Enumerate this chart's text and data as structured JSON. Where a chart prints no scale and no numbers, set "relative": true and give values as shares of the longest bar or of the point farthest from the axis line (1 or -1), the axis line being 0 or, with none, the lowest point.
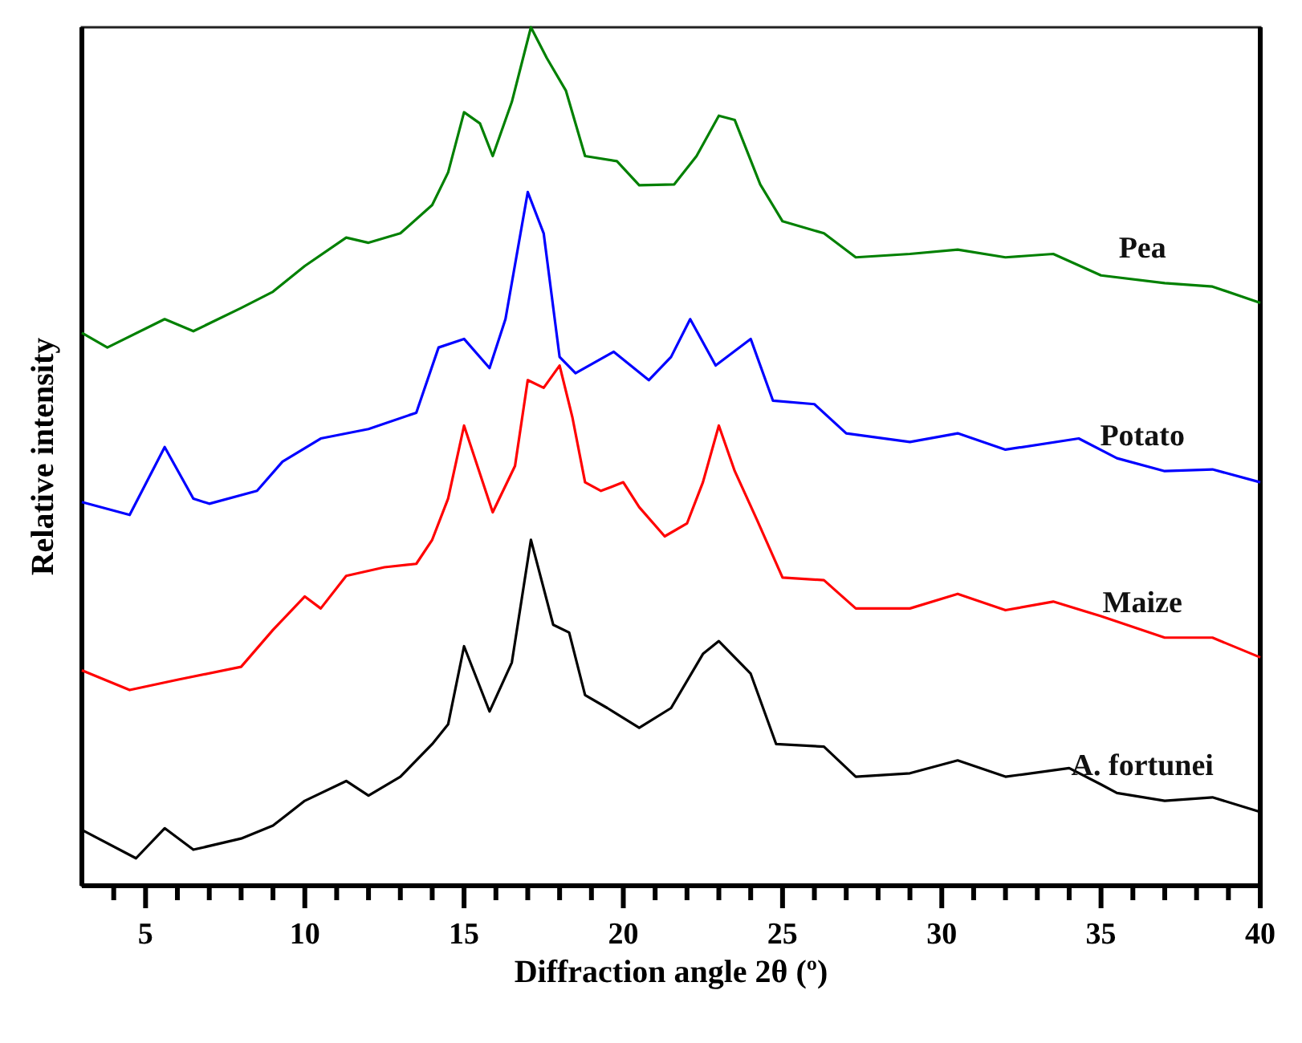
{
  "chart_data": {
    "type": "line",
    "relative": true,
    "xlabel": "Diffraction angle 2θ (º)",
    "ylabel": "Relative intensity",
    "xlim": [
      3,
      40
    ],
    "xticks": [
      {
        "value": 4,
        "label": null
      },
      5,
      {
        "value": 6,
        "label": null
      },
      {
        "value": 7,
        "label": null
      },
      {
        "value": 8,
        "label": null
      },
      {
        "value": 9,
        "label": null
      },
      10,
      {
        "value": 11,
        "label": null
      },
      {
        "value": 12,
        "label": null
      },
      {
        "value": 13,
        "label": null
      },
      {
        "value": 14,
        "label": null
      },
      15,
      {
        "value": 16,
        "label": null
      },
      {
        "value": 17,
        "label": null
      },
      {
        "value": 18,
        "label": null
      },
      {
        "value": 19,
        "label": null
      },
      20,
      {
        "value": 21,
        "label": null
      },
      {
        "value": 22,
        "label": null
      },
      {
        "value": 23,
        "label": null
      },
      {
        "value": 24,
        "label": null
      },
      25,
      {
        "value": 26,
        "label": null
      },
      {
        "value": 27,
        "label": null
      },
      {
        "value": 28,
        "label": null
      },
      {
        "value": 29,
        "label": null
      },
      30,
      {
        "value": 31,
        "label": null
      },
      {
        "value": 32,
        "label": null
      },
      {
        "value": 33,
        "label": null
      },
      {
        "value": 34,
        "label": null
      },
      35,
      {
        "value": 36,
        "label": null
      },
      {
        "value": 37,
        "label": null
      },
      {
        "value": 38,
        "label": null
      },
      {
        "value": 39,
        "label": null
      },
      40
    ],
    "legend": false,
    "series": [
      {
        "name": "A. fortunei",
        "color": "#000000",
        "x": [
          3,
          4.7,
          5.6,
          6.5,
          8,
          9,
          10,
          11.3,
          12,
          13,
          14,
          14.5,
          15,
          15.8,
          16.5,
          17.1,
          17.8,
          18.3,
          18.8,
          19.5,
          20.5,
          21.5,
          22.5,
          23,
          24,
          24.8,
          26.3,
          27.3,
          29,
          30.5,
          32,
          34,
          35,
          35.5,
          37,
          38.5,
          40
        ],
        "values": [
          0.065,
          0.032,
          0.067,
          0.042,
          0.055,
          0.07,
          0.099,
          0.122,
          0.105,
          0.127,
          0.165,
          0.188,
          0.279,
          0.203,
          0.26,
          0.403,
          0.304,
          0.295,
          0.222,
          0.207,
          0.184,
          0.207,
          0.27,
          0.285,
          0.247,
          0.165,
          0.162,
          0.127,
          0.131,
          0.146,
          0.127,
          0.137,
          0.118,
          0.108,
          0.099,
          0.103,
          0.086
        ]
      },
      {
        "name": "Maize",
        "color": "#ff0000",
        "x": [
          3,
          4.5,
          6,
          8,
          9,
          10,
          10.5,
          11.3,
          12.5,
          13.5,
          14,
          14.5,
          15,
          15.9,
          16.6,
          17,
          17.5,
          18,
          18.4,
          18.8,
          19.3,
          20,
          20.5,
          21.3,
          22,
          22.5,
          23,
          23.5,
          24.2,
          25,
          26.3,
          27.3,
          29,
          30.5,
          32,
          33.5,
          35,
          37,
          38.5,
          40
        ],
        "values": [
          0.251,
          0.228,
          0.24,
          0.255,
          0.298,
          0.337,
          0.323,
          0.361,
          0.371,
          0.375,
          0.403,
          0.451,
          0.536,
          0.435,
          0.489,
          0.589,
          0.58,
          0.606,
          0.546,
          0.47,
          0.46,
          0.47,
          0.441,
          0.407,
          0.422,
          0.47,
          0.536,
          0.483,
          0.426,
          0.359,
          0.356,
          0.323,
          0.323,
          0.34,
          0.321,
          0.331,
          0.314,
          0.289,
          0.289,
          0.266
        ]
      },
      {
        "name": "Potato",
        "color": "#0000ff",
        "x": [
          3,
          4.5,
          5.6,
          6.5,
          7,
          8.5,
          9.3,
          10.5,
          12,
          13.5,
          14.2,
          15,
          15.8,
          16.3,
          17,
          17.5,
          18,
          18.5,
          19.7,
          20.8,
          21.5,
          22.1,
          22.9,
          24,
          24.7,
          26,
          27,
          29,
          30.5,
          32,
          34.3,
          35.5,
          37,
          38.5,
          40
        ],
        "values": [
          0.447,
          0.432,
          0.511,
          0.451,
          0.445,
          0.46,
          0.494,
          0.521,
          0.532,
          0.551,
          0.627,
          0.637,
          0.603,
          0.66,
          0.808,
          0.76,
          0.616,
          0.597,
          0.622,
          0.589,
          0.616,
          0.66,
          0.606,
          0.637,
          0.565,
          0.561,
          0.527,
          0.517,
          0.527,
          0.508,
          0.521,
          0.498,
          0.483,
          0.485,
          0.47
        ]
      },
      {
        "name": "Pea",
        "color": "#008000",
        "x": [
          3,
          3.8,
          5.6,
          6.5,
          8,
          9,
          10,
          11.3,
          12,
          13,
          14,
          14.5,
          15,
          15.5,
          15.9,
          16.5,
          17.1,
          17.6,
          18.2,
          18.8,
          19.8,
          20.5,
          21.6,
          22.3,
          23,
          23.5,
          24.3,
          25,
          26.3,
          27.3,
          29,
          30.5,
          32,
          33.5,
          35,
          37,
          38.5,
          40
        ],
        "values": [
          0.644,
          0.627,
          0.66,
          0.646,
          0.673,
          0.692,
          0.722,
          0.755,
          0.749,
          0.76,
          0.793,
          0.831,
          0.901,
          0.888,
          0.85,
          0.913,
          1,
          0.964,
          0.926,
          0.85,
          0.844,
          0.816,
          0.817,
          0.85,
          0.897,
          0.892,
          0.817,
          0.774,
          0.76,
          0.732,
          0.736,
          0.741,
          0.732,
          0.736,
          0.711,
          0.702,
          0.698,
          0.679
        ]
      }
    ]
  }
}
